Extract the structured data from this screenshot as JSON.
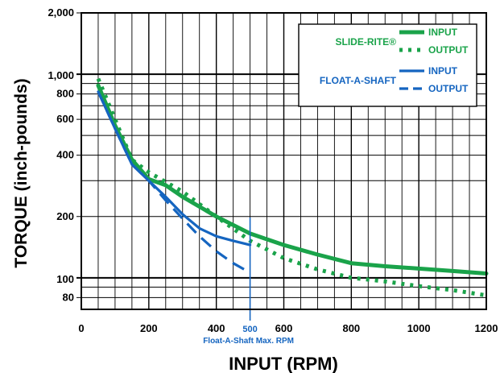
{
  "chart_data": {
    "type": "line",
    "xlabel": "INPUT (RPM)",
    "ylabel": "TORQUE (inch-pounds)",
    "xlim": [
      0,
      1200
    ],
    "ylim": [
      70,
      2000
    ],
    "yscale": "log",
    "x_ticks": [
      0,
      200,
      400,
      600,
      800,
      1000,
      1200
    ],
    "x_tick_labels": [
      "0",
      "200",
      "400",
      "600",
      "800",
      "1000",
      "1200"
    ],
    "y_ticks": [
      80,
      100,
      200,
      400,
      600,
      800,
      1000,
      2000
    ],
    "y_tick_labels": [
      "80",
      "100",
      "200",
      "400",
      "600",
      "800",
      "1,000",
      "2,000"
    ],
    "grid": true,
    "legend": {
      "placement": "top-right",
      "groups": [
        {
          "label": "SLIDE-RITE®",
          "color": "#1aa34a",
          "entries": [
            {
              "label": "INPUT",
              "style": "solid"
            },
            {
              "label": "OUTPUT",
              "style": "dotted"
            }
          ]
        },
        {
          "label": "FLOAT-A-SHAFT",
          "color": "#1565c0",
          "entries": [
            {
              "label": "INPUT",
              "style": "solid"
            },
            {
              "label": "OUTPUT",
              "style": "dashed"
            }
          ]
        }
      ]
    },
    "series": [
      {
        "group": "SLIDE-RITE",
        "label": "INPUT",
        "color": "#1aa34a",
        "style": "solid",
        "x": [
          50,
          100,
          150,
          200,
          250,
          300,
          400,
          500,
          600,
          700,
          800,
          900,
          1000,
          1100,
          1200
        ],
        "y": [
          880,
          560,
          380,
          305,
          285,
          250,
          200,
          165,
          145,
          130,
          118,
          114,
          111,
          108,
          105
        ]
      },
      {
        "group": "SLIDE-RITE",
        "label": "OUTPUT",
        "color": "#1aa34a",
        "style": "dotted",
        "x": [
          50,
          100,
          150,
          200,
          300,
          400,
          500,
          600,
          700,
          800,
          900,
          1000,
          1100,
          1200
        ],
        "y": [
          950,
          600,
          380,
          330,
          265,
          200,
          152,
          125,
          110,
          100,
          96,
          91,
          87,
          82
        ]
      },
      {
        "group": "FLOAT-A-SHAFT",
        "label": "INPUT",
        "color": "#1565c0",
        "style": "solid",
        "x": [
          50,
          100,
          150,
          200,
          250,
          300,
          350,
          400,
          450,
          500
        ],
        "y": [
          820,
          540,
          360,
          300,
          250,
          205,
          175,
          160,
          152,
          145
        ]
      },
      {
        "group": "FLOAT-A-SHAFT",
        "label": "OUTPUT",
        "color": "#1565c0",
        "style": "dashed",
        "x": [
          50,
          100,
          150,
          200,
          250,
          300,
          350,
          400,
          450,
          500
        ],
        "y": [
          820,
          540,
          360,
          300,
          240,
          195,
          160,
          135,
          118,
          106
        ]
      }
    ],
    "annotations": [
      {
        "text": "500",
        "x": 500,
        "color": "#1565c0"
      },
      {
        "text": "Float-A-Shaft Max. RPM",
        "color": "#1565c0"
      }
    ]
  }
}
